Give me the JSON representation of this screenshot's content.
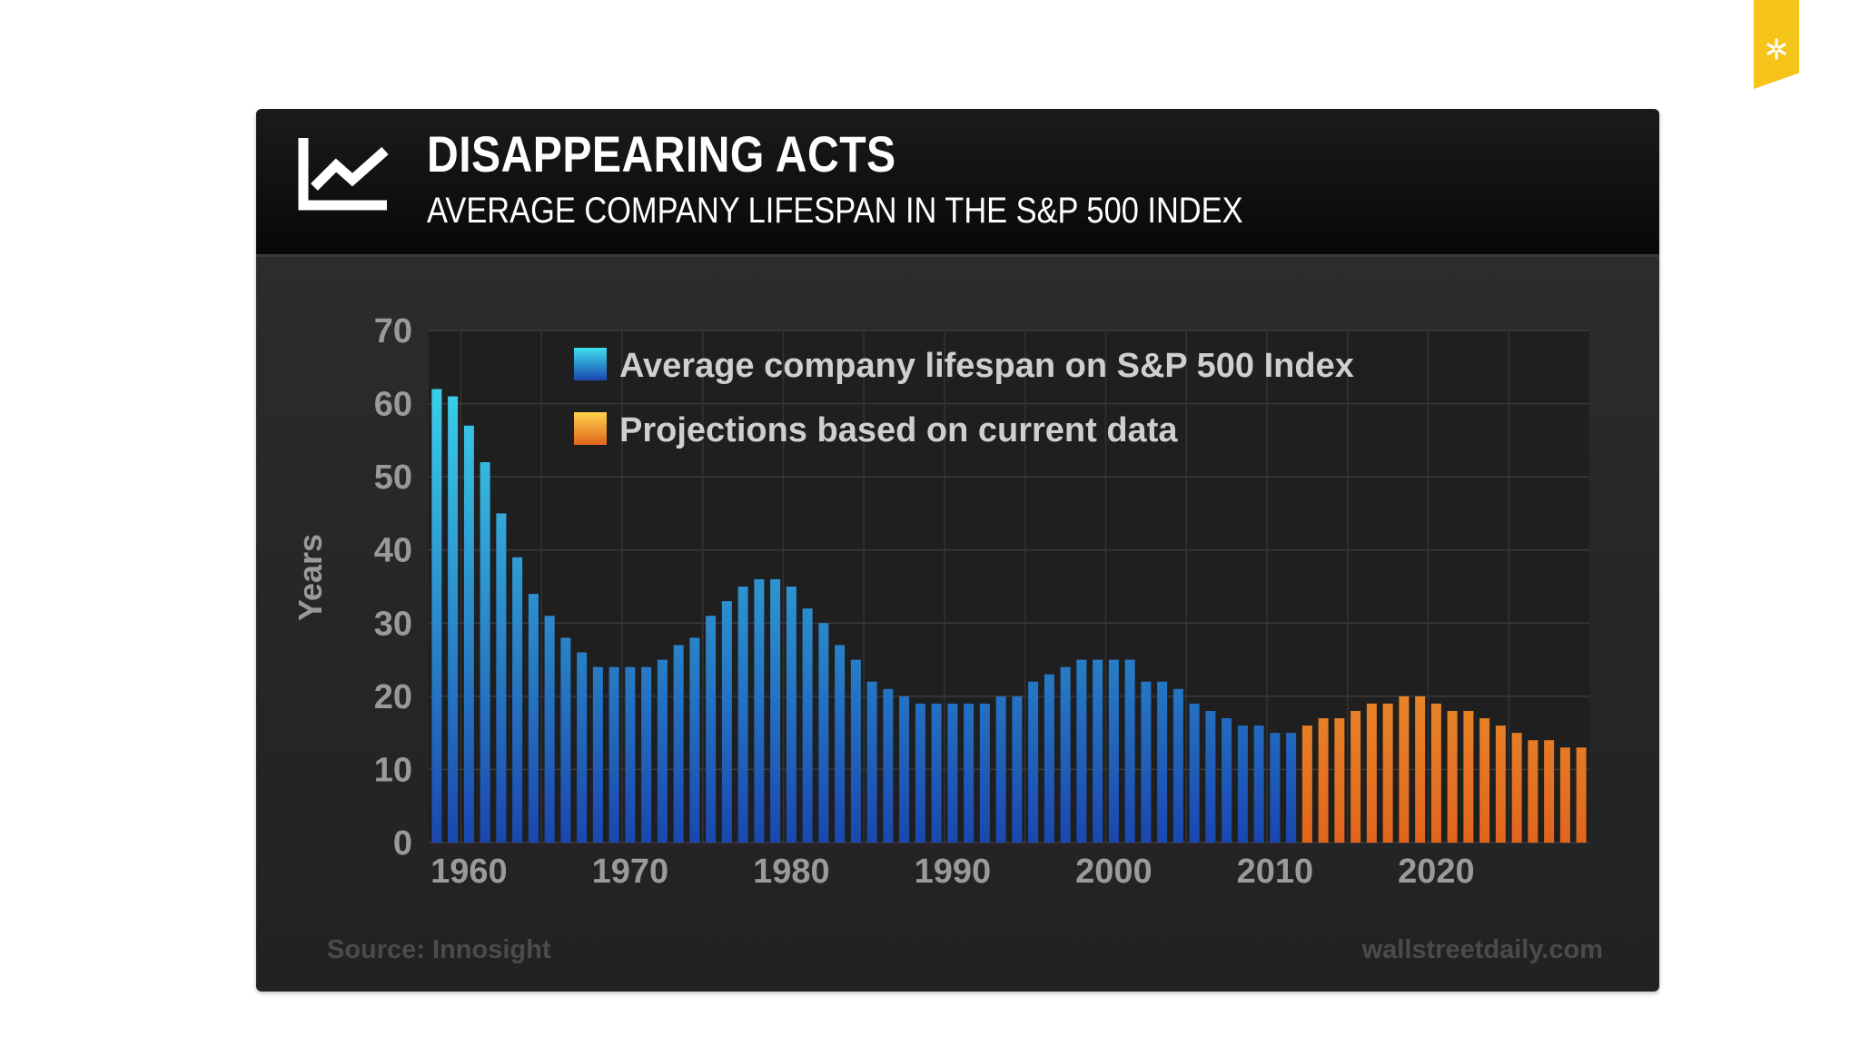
{
  "header": {
    "title": "DISAPPEARING ACTS",
    "subtitle": "AVERAGE COMPANY LIFESPAN IN THE S&P 500 INDEX"
  },
  "footer": {
    "source": "Source: Innosight",
    "site": "wallstreetdaily.com"
  },
  "icons": {
    "header_icon": "line-chart-icon",
    "bookmark_icon": "asterisk-icon"
  },
  "colors": {
    "bookmark": "#f6c319",
    "actual_top": "#3fe0f0",
    "actual_bottom": "#1a47b0",
    "projection_top": "#ffd24a",
    "projection_bottom": "#e0651c"
  },
  "chart_data": {
    "type": "bar",
    "title": "DISAPPEARING ACTS",
    "subtitle": "AVERAGE COMPANY LIFESPAN IN THE S&P 500 INDEX",
    "ylabel": "Years",
    "ylim": [
      0,
      70
    ],
    "yticks": [
      "0",
      "10",
      "20",
      "30",
      "40",
      "50",
      "60",
      "70"
    ],
    "xticks": [
      "1960",
      "1970",
      "1980",
      "1990",
      "2000",
      "2010",
      "2020"
    ],
    "grid": true,
    "legend_position": "top",
    "series": [
      {
        "name": "Average company lifespan on S&P 500 Index",
        "color_top": "#3fe0f0",
        "color_bottom": "#1a47b0",
        "x": [
          1958,
          1959,
          1960,
          1961,
          1962,
          1963,
          1964,
          1965,
          1966,
          1967,
          1968,
          1969,
          1970,
          1971,
          1972,
          1973,
          1974,
          1975,
          1976,
          1977,
          1978,
          1979,
          1980,
          1981,
          1982,
          1983,
          1984,
          1985,
          1986,
          1987,
          1988,
          1989,
          1990,
          1991,
          1992,
          1993,
          1994,
          1995,
          1996,
          1997,
          1998,
          1999,
          2000,
          2001,
          2002,
          2003,
          2004,
          2005,
          2006,
          2007,
          2008,
          2009,
          2010,
          2011
        ],
        "values": [
          62,
          61,
          57,
          52,
          45,
          39,
          34,
          31,
          28,
          26,
          24,
          24,
          24,
          24,
          25,
          27,
          28,
          31,
          33,
          35,
          36,
          36,
          35,
          32,
          30,
          27,
          25,
          22,
          21,
          20,
          19,
          19,
          19,
          19,
          19,
          20,
          20,
          22,
          23,
          24,
          25,
          25,
          25,
          25,
          22,
          22,
          21,
          19,
          18,
          17,
          16,
          16,
          15,
          15
        ]
      },
      {
        "name": "Projections based on current data",
        "color_top": "#ffd24a",
        "color_bottom": "#e0651c",
        "x": [
          2012,
          2013,
          2014,
          2015,
          2016,
          2017,
          2018,
          2019,
          2020,
          2021,
          2022,
          2023,
          2024,
          2025,
          2026,
          2027,
          2028,
          2029
        ],
        "values": [
          16,
          17,
          17,
          18,
          19,
          19,
          20,
          20,
          19,
          18,
          18,
          17,
          16,
          15,
          14,
          14,
          13,
          13
        ]
      }
    ]
  }
}
